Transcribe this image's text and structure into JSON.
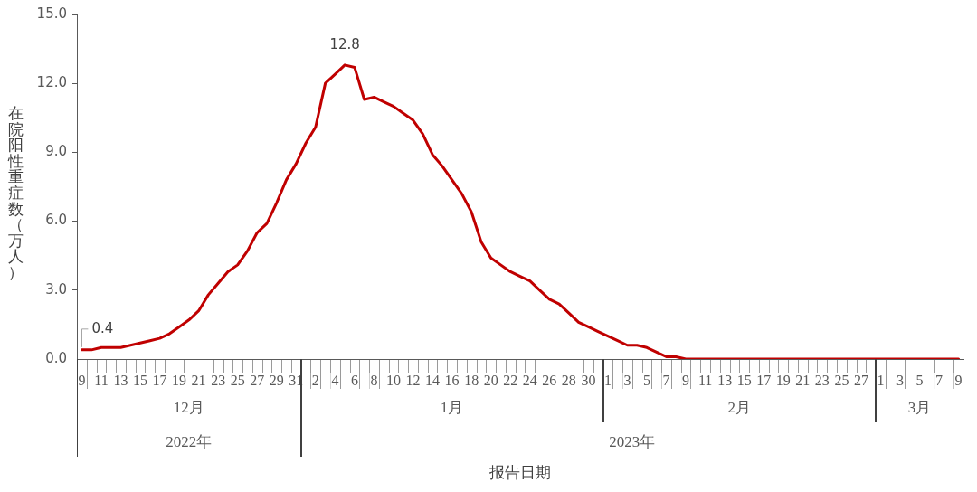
{
  "chart_data": {
    "type": "line",
    "xlabel": "报告日期",
    "ylabel": "在院阳性重症数（万人）",
    "x": [
      "2022-12-09",
      "2022-12-10",
      "2022-12-11",
      "2022-12-12",
      "2022-12-13",
      "2022-12-14",
      "2022-12-15",
      "2022-12-16",
      "2022-12-17",
      "2022-12-18",
      "2022-12-19",
      "2022-12-20",
      "2022-12-21",
      "2022-12-22",
      "2022-12-23",
      "2022-12-24",
      "2022-12-25",
      "2022-12-26",
      "2022-12-27",
      "2022-12-28",
      "2022-12-29",
      "2022-12-30",
      "2022-12-31",
      "2023-01-01",
      "2023-01-02",
      "2023-01-03",
      "2023-01-04",
      "2023-01-05",
      "2023-01-06",
      "2023-01-07",
      "2023-01-08",
      "2023-01-09",
      "2023-01-10",
      "2023-01-11",
      "2023-01-12",
      "2023-01-13",
      "2023-01-14",
      "2023-01-15",
      "2023-01-16",
      "2023-01-17",
      "2023-01-18",
      "2023-01-19",
      "2023-01-20",
      "2023-01-21",
      "2023-01-22",
      "2023-01-23",
      "2023-01-24",
      "2023-01-25",
      "2023-01-26",
      "2023-01-27",
      "2023-01-28",
      "2023-01-29",
      "2023-01-30",
      "2023-01-31",
      "2023-02-01",
      "2023-02-02",
      "2023-02-03",
      "2023-02-04",
      "2023-02-05",
      "2023-02-06",
      "2023-02-07",
      "2023-02-08",
      "2023-02-09",
      "2023-02-10",
      "2023-02-11",
      "2023-02-12",
      "2023-02-13",
      "2023-02-14",
      "2023-02-15",
      "2023-02-16",
      "2023-02-17",
      "2023-02-18",
      "2023-02-19",
      "2023-02-20",
      "2023-02-21",
      "2023-02-22",
      "2023-02-23",
      "2023-02-24",
      "2023-02-25",
      "2023-02-26",
      "2023-02-27",
      "2023-02-28",
      "2023-03-01",
      "2023-03-02",
      "2023-03-03",
      "2023-03-04",
      "2023-03-05",
      "2023-03-06",
      "2023-03-07",
      "2023-03-08",
      "2023-03-09"
    ],
    "xlim": [
      "2022-12-08T12:00",
      "2023-03-09T12:00"
    ],
    "xticks": [
      {
        "value": "2022-12-09",
        "label": "9"
      },
      {
        "value": "2022-12-11",
        "label": "11"
      },
      {
        "value": "2022-12-13",
        "label": "13"
      },
      {
        "value": "2022-12-15",
        "label": "15"
      },
      {
        "value": "2022-12-17",
        "label": "17"
      },
      {
        "value": "2022-12-19",
        "label": "19"
      },
      {
        "value": "2022-12-21",
        "label": "21"
      },
      {
        "value": "2022-12-23",
        "label": "23"
      },
      {
        "value": "2022-12-25",
        "label": "25"
      },
      {
        "value": "2022-12-27",
        "label": "27"
      },
      {
        "value": "2022-12-29",
        "label": "29"
      },
      {
        "value": "2022-12-31",
        "label": "31"
      },
      {
        "value": "2023-01-02",
        "label": "2"
      },
      {
        "value": "2023-01-04",
        "label": "4"
      },
      {
        "value": "2023-01-06",
        "label": "6"
      },
      {
        "value": "2023-01-08",
        "label": "8"
      },
      {
        "value": "2023-01-10",
        "label": "10"
      },
      {
        "value": "2023-01-12",
        "label": "12"
      },
      {
        "value": "2023-01-14",
        "label": "14"
      },
      {
        "value": "2023-01-16",
        "label": "16"
      },
      {
        "value": "2023-01-18",
        "label": "18"
      },
      {
        "value": "2023-01-20",
        "label": "20"
      },
      {
        "value": "2023-01-22",
        "label": "22"
      },
      {
        "value": "2023-01-24",
        "label": "24"
      },
      {
        "value": "2023-01-26",
        "label": "26"
      },
      {
        "value": "2023-01-28",
        "label": "28"
      },
      {
        "value": "2023-01-30",
        "label": "30"
      },
      {
        "value": "2023-02-01",
        "label": "1"
      },
      {
        "value": "2023-02-03",
        "label": "3"
      },
      {
        "value": "2023-02-05",
        "label": "5"
      },
      {
        "value": "2023-02-07",
        "label": "7"
      },
      {
        "value": "2023-02-09",
        "label": "9"
      },
      {
        "value": "2023-02-11",
        "label": "11"
      },
      {
        "value": "2023-02-13",
        "label": "13"
      },
      {
        "value": "2023-02-15",
        "label": "15"
      },
      {
        "value": "2023-02-17",
        "label": "17"
      },
      {
        "value": "2023-02-19",
        "label": "19"
      },
      {
        "value": "2023-02-21",
        "label": "21"
      },
      {
        "value": "2023-02-23",
        "label": "23"
      },
      {
        "value": "2023-02-25",
        "label": "25"
      },
      {
        "value": "2023-02-27",
        "label": "27"
      },
      {
        "value": "2023-03-01",
        "label": "1"
      },
      {
        "value": "2023-03-03",
        "label": "3"
      },
      {
        "value": "2023-03-05",
        "label": "5"
      },
      {
        "value": "2023-03-07",
        "label": "7"
      },
      {
        "value": "2023-03-09",
        "label": "9"
      }
    ],
    "ylim": [
      0,
      15
    ],
    "yticks": [
      {
        "value": 0,
        "label": "0.0"
      },
      {
        "value": 3,
        "label": "3.0"
      },
      {
        "value": 6,
        "label": "6.0"
      },
      {
        "value": 9,
        "label": "9.0"
      },
      {
        "value": 12,
        "label": "12.0"
      },
      {
        "value": 15,
        "label": "15.0"
      }
    ],
    "color": "#c00000",
    "values": [
      0.4,
      0.4,
      0.5,
      0.5,
      0.5,
      0.6,
      0.7,
      0.8,
      0.9,
      1.1,
      1.4,
      1.7,
      2.1,
      2.8,
      3.3,
      3.8,
      4.1,
      4.7,
      5.5,
      5.9,
      6.8,
      7.8,
      8.5,
      9.4,
      10.1,
      12.0,
      12.4,
      12.8,
      12.7,
      11.3,
      11.4,
      11.2,
      11.0,
      10.7,
      10.4,
      9.8,
      8.9,
      8.4,
      7.8,
      7.2,
      6.4,
      5.1,
      4.4,
      4.1,
      3.8,
      3.6,
      3.4,
      3.0,
      2.6,
      2.4,
      2.0,
      1.6,
      1.4,
      1.2,
      1.0,
      0.8,
      0.6,
      0.6,
      0.5,
      0.3,
      0.1,
      0.1,
      0,
      0,
      0,
      0,
      0,
      0,
      0,
      0,
      0,
      0,
      0,
      0,
      0,
      0,
      0,
      0,
      0,
      0,
      0,
      0,
      0,
      0,
      0,
      0,
      0,
      0,
      0,
      0,
      0
    ],
    "value_labels": [
      "0.4",
      null,
      null,
      null,
      null,
      null,
      null,
      null,
      null,
      null,
      null,
      null,
      null,
      null,
      null,
      null,
      null,
      null,
      null,
      null,
      null,
      null,
      null,
      null,
      null,
      null,
      null,
      "12.8",
      null,
      null,
      null,
      null,
      null,
      null,
      null,
      null,
      null,
      null,
      null,
      null,
      null,
      null,
      null,
      null,
      null,
      null,
      null,
      null,
      null,
      null,
      null,
      null,
      null,
      null,
      null,
      null,
      null,
      null,
      null,
      null,
      null,
      null,
      null,
      null,
      null,
      null,
      null,
      null,
      null,
      null,
      null,
      null,
      null,
      null,
      null,
      null,
      null,
      null,
      null,
      null,
      null,
      null,
      null,
      null,
      null,
      null,
      null,
      null,
      null,
      null,
      null
    ],
    "marker": "none",
    "line_style": "solid",
    "annotations": [
      "12月",
      "1月",
      "2月",
      "3月",
      "2022年",
      "2023年"
    ]
  }
}
